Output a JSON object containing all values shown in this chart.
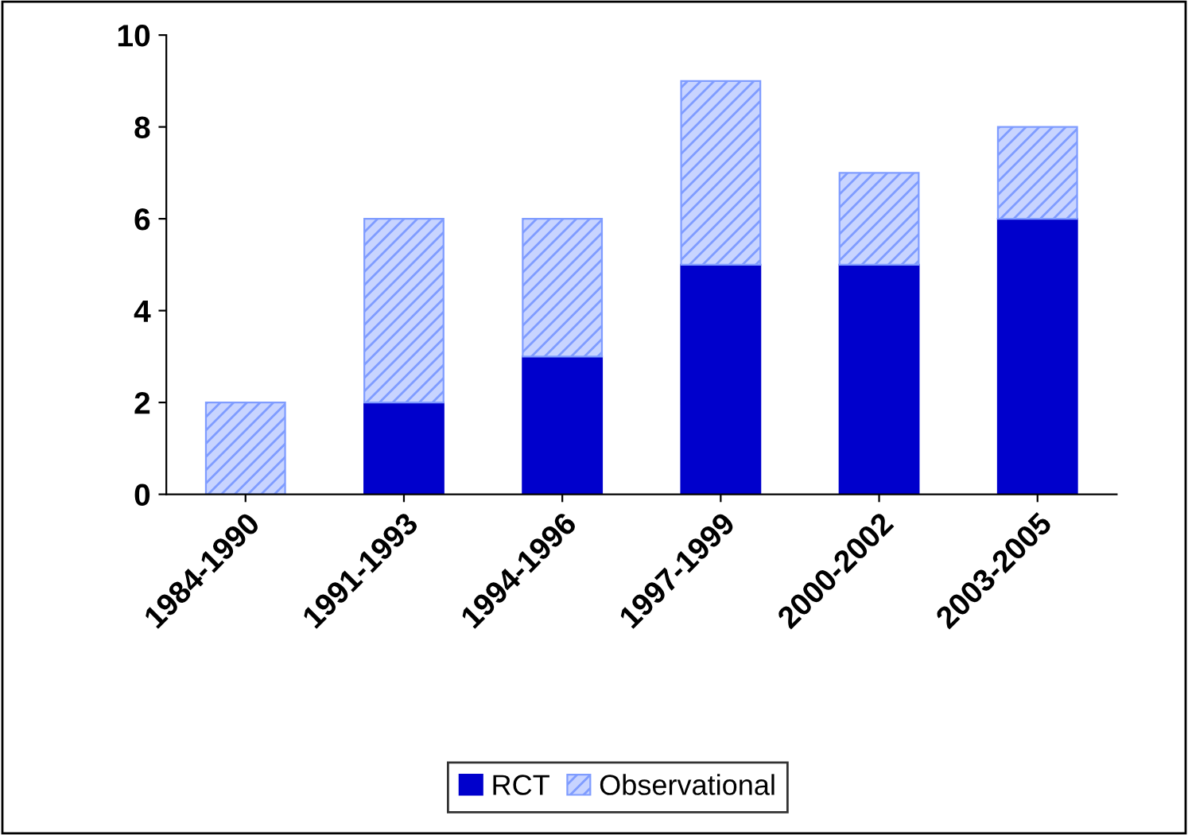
{
  "chart_data": {
    "type": "bar",
    "stacked": true,
    "categories": [
      "1984-1990",
      "1991-1993",
      "1994-1996",
      "1997-1999",
      "2000-2002",
      "2003-2005"
    ],
    "series": [
      {
        "name": "RCT",
        "color": "#0000cc",
        "values": [
          0,
          2,
          3,
          5,
          5,
          6
        ]
      },
      {
        "name": "Observational",
        "color": "#7f9cff",
        "values": [
          2,
          4,
          3,
          4,
          2,
          2
        ]
      }
    ],
    "ylim": [
      0,
      10
    ],
    "yticks": [
      0,
      2,
      4,
      6,
      8,
      10
    ],
    "grid": false,
    "legend": "bottom"
  }
}
